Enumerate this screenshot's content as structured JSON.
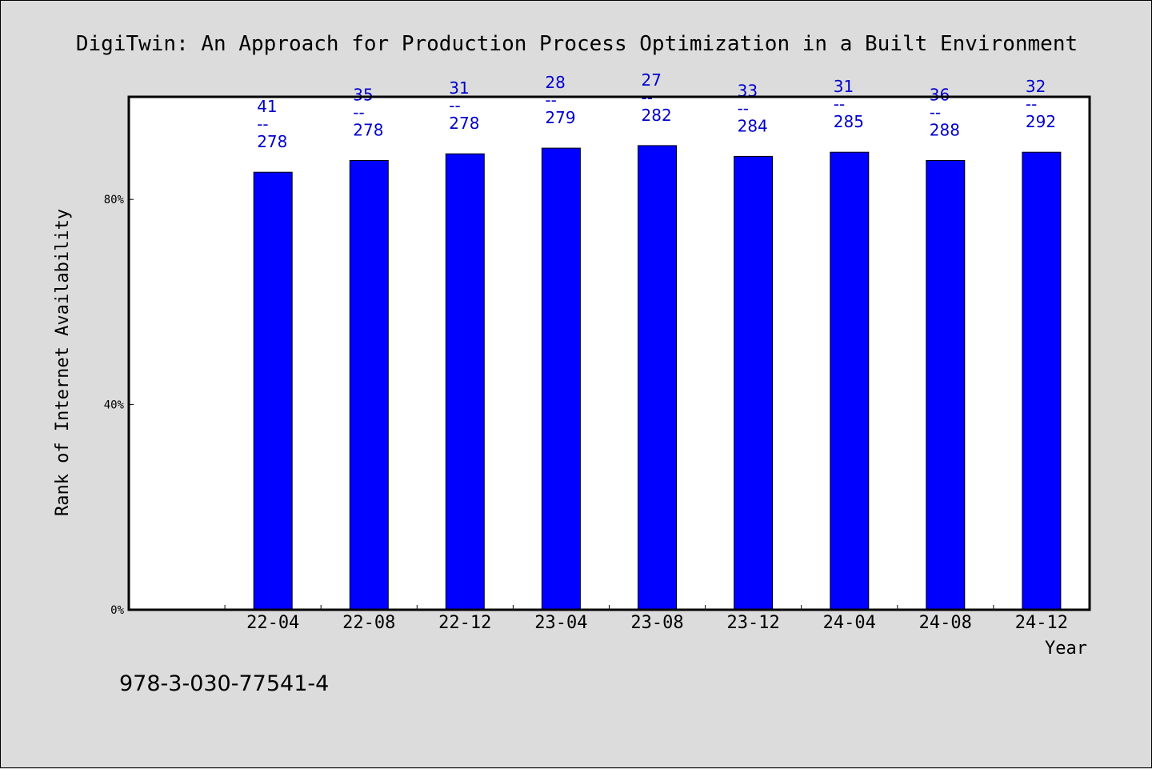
{
  "chart_data": {
    "type": "bar",
    "title": "DigiTwin: An Approach for Production Process Optimization in a Built Environment",
    "xlabel": "Year",
    "ylabel": "Rank of Internet Availability",
    "categories": [
      "22-04",
      "22-08",
      "22-12",
      "23-04",
      "23-08",
      "23-12",
      "24-04",
      "24-08",
      "24-12"
    ],
    "values": [
      85.3,
      87.6,
      88.9,
      90.0,
      90.5,
      88.4,
      89.2,
      87.6,
      89.2
    ],
    "bar_labels": [
      {
        "top": "41",
        "sep": "--",
        "bottom": "278"
      },
      {
        "top": "35",
        "sep": "--",
        "bottom": "278"
      },
      {
        "top": "31",
        "sep": "--",
        "bottom": "278"
      },
      {
        "top": "28",
        "sep": "--",
        "bottom": "279"
      },
      {
        "top": "27",
        "sep": "--",
        "bottom": "282"
      },
      {
        "top": "33",
        "sep": "--",
        "bottom": "284"
      },
      {
        "top": "31",
        "sep": "--",
        "bottom": "285"
      },
      {
        "top": "36",
        "sep": "--",
        "bottom": "288"
      },
      {
        "top": "32",
        "sep": "--",
        "bottom": "292"
      }
    ],
    "yticks": [
      0,
      40,
      80
    ],
    "ytick_labels": [
      "0%",
      "40%",
      "80%"
    ],
    "ylim": [
      0,
      100
    ],
    "grid": false,
    "bar_color": "#0000ff",
    "label_color": "#0000cc"
  },
  "footer": {
    "isbn": "978-3-030-77541-4"
  }
}
